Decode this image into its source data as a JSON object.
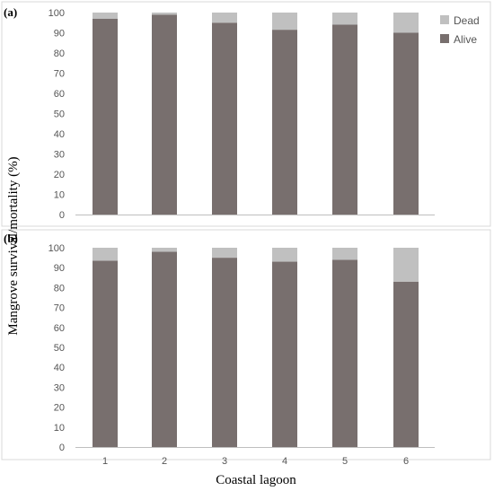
{
  "colors": {
    "alive": "#786f6e",
    "dead": "#c0c0c0",
    "frame": "#d9d9d9",
    "axis": "#bfbfbf"
  },
  "chart_data": [
    {
      "type": "bar",
      "stacked": true,
      "panel_label": "(a)",
      "categories": [
        "1",
        "2",
        "3",
        "4",
        "5",
        "6"
      ],
      "series": [
        {
          "name": "Alive",
          "values": [
            97,
            99,
            95,
            91.5,
            94,
            90
          ]
        },
        {
          "name": "Dead",
          "values": [
            3,
            1,
            5,
            8.5,
            6,
            10
          ]
        }
      ],
      "ylim": [
        0,
        100
      ],
      "yticks": [
        "0",
        "10",
        "20",
        "30",
        "40",
        "50",
        "60",
        "70",
        "80",
        "90",
        "100"
      ],
      "legend": [
        "Dead",
        "Alive"
      ],
      "legend_position": "right",
      "grid": false
    },
    {
      "type": "bar",
      "stacked": true,
      "panel_label": "(b)",
      "categories": [
        "1",
        "2",
        "3",
        "4",
        "5",
        "6"
      ],
      "series": [
        {
          "name": "Alive",
          "values": [
            93.5,
            98,
            95,
            93,
            94,
            83
          ]
        },
        {
          "name": "Dead",
          "values": [
            6.5,
            2,
            5,
            7,
            6,
            17
          ]
        }
      ],
      "ylim": [
        0,
        100
      ],
      "yticks": [
        "0",
        "10",
        "20",
        "30",
        "40",
        "50",
        "60",
        "70",
        "80",
        "90",
        "100"
      ],
      "grid": false
    }
  ],
  "ylabel": "Mangrove survival/mortality (%)",
  "xlabel": "Coastal lagoon"
}
